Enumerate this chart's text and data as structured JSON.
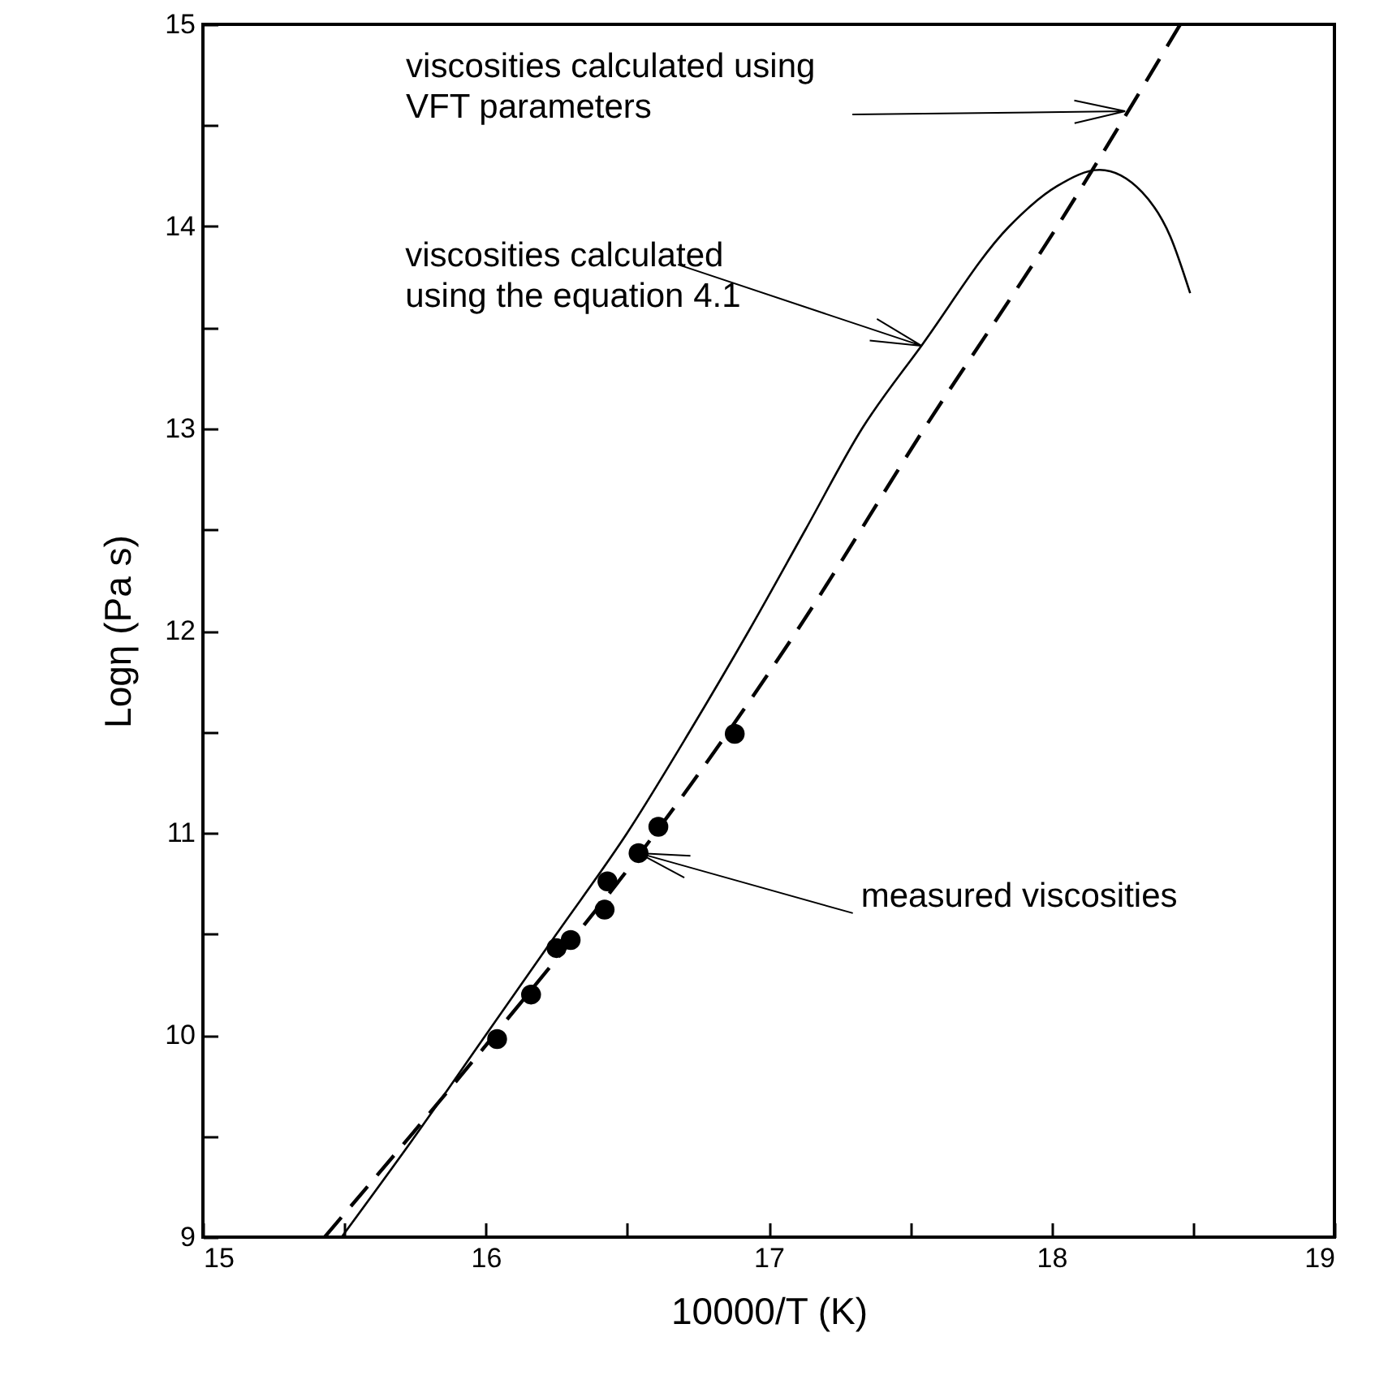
{
  "chart_data": {
    "type": "line",
    "xlabel": "10000/T (K)",
    "ylabel": "Logη (Pa s)",
    "xlim": [
      15,
      19
    ],
    "ylim": [
      9,
      15
    ],
    "xticks": [
      15,
      {
        "value": 15.5,
        "label": null
      },
      16,
      {
        "value": 16.5,
        "label": null
      },
      17,
      {
        "value": 17.5,
        "label": null
      },
      18,
      {
        "value": 18.5,
        "label": null
      },
      19
    ],
    "yticks": [
      9,
      {
        "value": 9.5,
        "label": null
      },
      10,
      {
        "value": 10.5,
        "label": null
      },
      11,
      {
        "value": 11.5,
        "label": null
      },
      12,
      {
        "value": 12.5,
        "label": null
      },
      13,
      {
        "value": 13.5,
        "label": null
      },
      14,
      {
        "value": 14.5,
        "label": null
      },
      15
    ],
    "series": [
      {
        "color": "#000000",
        "line_style": "solid",
        "x": [
          15.49,
          15.75,
          16.0,
          16.25,
          16.5,
          16.72,
          16.93,
          17.13,
          17.33,
          17.54,
          17.85,
          18.02,
          18.17,
          18.32,
          18.42,
          18.49
        ],
        "values": [
          9,
          9.5,
          10,
          10.5,
          11,
          11.5,
          12,
          12.5,
          13,
          13.41,
          14,
          14.2,
          14.28,
          14.17,
          13.95,
          13.67
        ]
      },
      {
        "color": "#000000",
        "line_style": "dashed",
        "x": [
          15.43,
          16.03,
          16.6,
          17.1,
          17.55,
          18.02,
          18.455
        ],
        "values": [
          9,
          10,
          11,
          12,
          13,
          14,
          15
        ]
      },
      {
        "type": "scatter",
        "color": "#000000",
        "marker": "circle",
        "x": [
          16.04,
          16.16,
          16.25,
          16.3,
          16.42,
          16.43,
          16.54,
          16.61,
          16.88
        ],
        "values": [
          9.98,
          10.2,
          10.43,
          10.47,
          10.62,
          10.76,
          10.9,
          11.03,
          11.49
        ]
      }
    ],
    "annotations": [
      {
        "text": "viscosities calculated using\nVFT parameters",
        "x": 18.26,
        "y": 14.57
      },
      {
        "text": "viscosities calculated\nusing the equation 4.1",
        "x": 17.54,
        "y": 13.41
      },
      {
        "text": "measured viscosities",
        "x": 16.54,
        "y": 10.9
      }
    ]
  }
}
